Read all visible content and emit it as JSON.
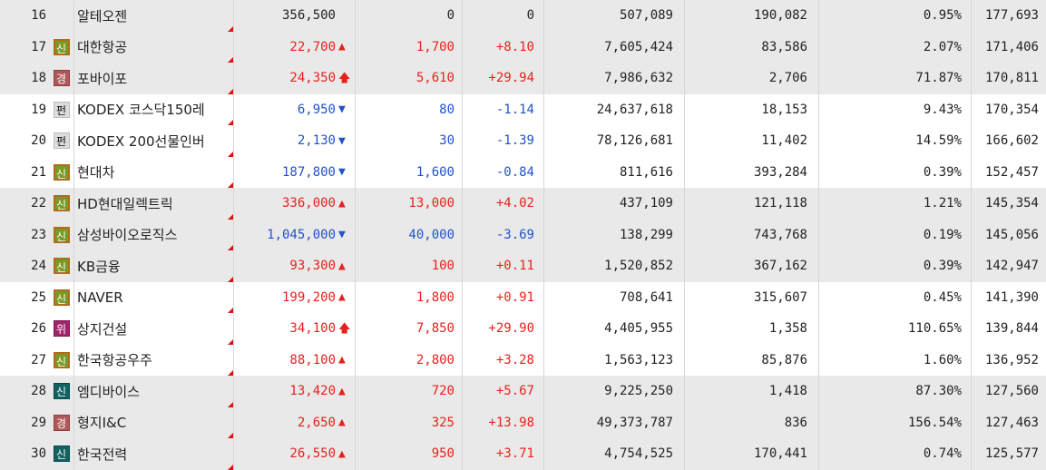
{
  "colors": {
    "up": "#e8211c",
    "down": "#1f52c9",
    "row_gray": "#e9e9e9",
    "row_white": "#ffffff"
  },
  "rows": [
    {
      "rank": "16",
      "badge": "",
      "badge_type": "",
      "name": "알테오젠",
      "price": "356,500",
      "dir": "flat",
      "arrow": "",
      "diff": "0",
      "rate": "0",
      "volume": "507,089",
      "vol2": "190,082",
      "pct": "0.95%",
      "amount": "177,693",
      "shade": "gray"
    },
    {
      "rank": "17",
      "badge": "신",
      "badge_type": "new",
      "name": "대한항공",
      "price": "22,700",
      "dir": "up",
      "arrow": "▲",
      "diff": "1,700",
      "rate": "+8.10",
      "volume": "7,605,424",
      "vol2": "83,586",
      "pct": "2.07%",
      "amount": "171,406",
      "shade": "gray"
    },
    {
      "rank": "18",
      "badge": "경",
      "badge_type": "warn",
      "name": "포바이포",
      "price": "24,350",
      "dir": "up",
      "arrow": "🡅",
      "diff": "5,610",
      "rate": "+29.94",
      "volume": "7,986,632",
      "vol2": "2,706",
      "pct": "71.87%",
      "amount": "170,811",
      "shade": "gray"
    },
    {
      "rank": "19",
      "badge": "펀",
      "badge_type": "fund",
      "name": "KODEX 코스닥150레",
      "price": "6,950",
      "dir": "down",
      "arrow": "▼",
      "diff": "80",
      "rate": "-1.14",
      "volume": "24,637,618",
      "vol2": "18,153",
      "pct": "9.43%",
      "amount": "170,354",
      "shade": "white"
    },
    {
      "rank": "20",
      "badge": "펀",
      "badge_type": "fund",
      "name": "KODEX 200선물인버",
      "price": "2,130",
      "dir": "down",
      "arrow": "▼",
      "diff": "30",
      "rate": "-1.39",
      "volume": "78,126,681",
      "vol2": "11,402",
      "pct": "14.59%",
      "amount": "166,602",
      "shade": "white"
    },
    {
      "rank": "21",
      "badge": "신",
      "badge_type": "new",
      "name": "현대차",
      "price": "187,800",
      "dir": "down",
      "arrow": "▼",
      "diff": "1,600",
      "rate": "-0.84",
      "volume": "811,616",
      "vol2": "393,284",
      "pct": "0.39%",
      "amount": "152,457",
      "shade": "white"
    },
    {
      "rank": "22",
      "badge": "신",
      "badge_type": "new",
      "name": "HD현대일렉트릭",
      "price": "336,000",
      "dir": "up",
      "arrow": "▲",
      "diff": "13,000",
      "rate": "+4.02",
      "volume": "437,109",
      "vol2": "121,118",
      "pct": "1.21%",
      "amount": "145,354",
      "shade": "gray"
    },
    {
      "rank": "23",
      "badge": "신",
      "badge_type": "new",
      "name": "삼성바이오로직스",
      "price": "1,045,000",
      "dir": "down",
      "arrow": "▼",
      "diff": "40,000",
      "rate": "-3.69",
      "volume": "138,299",
      "vol2": "743,768",
      "pct": "0.19%",
      "amount": "145,056",
      "shade": "gray"
    },
    {
      "rank": "24",
      "badge": "신",
      "badge_type": "new",
      "name": "KB금융",
      "price": "93,300",
      "dir": "up",
      "arrow": "▲",
      "diff": "100",
      "rate": "+0.11",
      "volume": "1,520,852",
      "vol2": "367,162",
      "pct": "0.39%",
      "amount": "142,947",
      "shade": "gray"
    },
    {
      "rank": "25",
      "badge": "신",
      "badge_type": "new",
      "name": "NAVER",
      "price": "199,200",
      "dir": "up",
      "arrow": "▲",
      "diff": "1,800",
      "rate": "+0.91",
      "volume": "708,641",
      "vol2": "315,607",
      "pct": "0.45%",
      "amount": "141,390",
      "shade": "white"
    },
    {
      "rank": "26",
      "badge": "위",
      "badge_type": "risk",
      "name": "상지건설",
      "price": "34,100",
      "dir": "up",
      "arrow": "🡅",
      "diff": "7,850",
      "rate": "+29.90",
      "volume": "4,405,955",
      "vol2": "1,358",
      "pct": "110.65%",
      "amount": "139,844",
      "shade": "white"
    },
    {
      "rank": "27",
      "badge": "신",
      "badge_type": "new",
      "name": "한국항공우주",
      "price": "88,100",
      "dir": "up",
      "arrow": "▲",
      "diff": "2,800",
      "rate": "+3.28",
      "volume": "1,563,123",
      "vol2": "85,876",
      "pct": "1.60%",
      "amount": "136,952",
      "shade": "white"
    },
    {
      "rank": "28",
      "badge": "신",
      "badge_type": "new-dk",
      "name": "엠디바이스",
      "price": "13,420",
      "dir": "up",
      "arrow": "▲",
      "diff": "720",
      "rate": "+5.67",
      "volume": "9,225,250",
      "vol2": "1,418",
      "pct": "87.30%",
      "amount": "127,560",
      "shade": "gray"
    },
    {
      "rank": "29",
      "badge": "경",
      "badge_type": "warn",
      "name": "형지I&C",
      "price": "2,650",
      "dir": "up",
      "arrow": "▲",
      "diff": "325",
      "rate": "+13.98",
      "volume": "49,373,787",
      "vol2": "836",
      "pct": "156.54%",
      "amount": "127,463",
      "shade": "gray"
    },
    {
      "rank": "30",
      "badge": "신",
      "badge_type": "new-dk",
      "name": "한국전력",
      "price": "26,550",
      "dir": "up",
      "arrow": "▲",
      "diff": "950",
      "rate": "+3.71",
      "volume": "4,754,525",
      "vol2": "170,441",
      "pct": "0.74%",
      "amount": "125,577",
      "shade": "gray"
    }
  ]
}
